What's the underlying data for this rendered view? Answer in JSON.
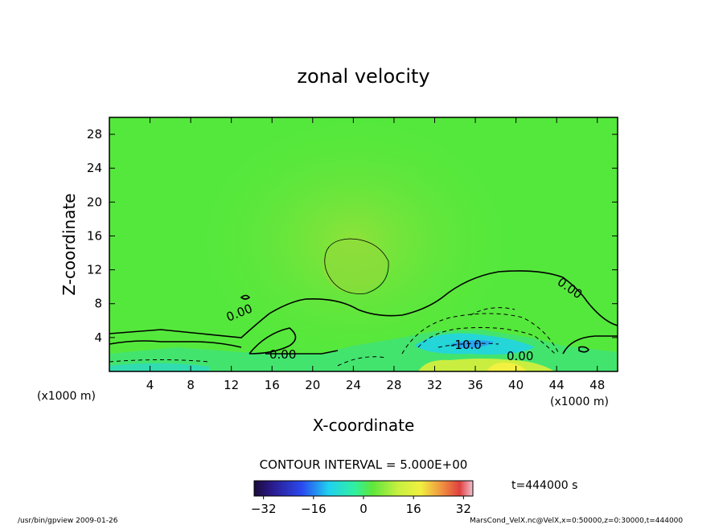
{
  "chart_data": {
    "type": "heatmap",
    "title": "zonal velocity",
    "xlabel": "X-coordinate",
    "ylabel": "Z-coordinate",
    "x_unit": "(x1000 m)",
    "y_unit": "(x1000 m)",
    "xlim": [
      0,
      50
    ],
    "ylim": [
      0,
      30
    ],
    "x_ticks": [
      "4",
      "8",
      "12",
      "16",
      "20",
      "24",
      "28",
      "32",
      "36",
      "40",
      "44",
      "48"
    ],
    "y_ticks": [
      "4",
      "8",
      "12",
      "16",
      "20",
      "24",
      "28"
    ],
    "contour_interval": "CONTOUR INTERVAL = 5.000E+00",
    "contour_labels": [
      "0.00",
      "0.00",
      "-10.0",
      "0.00",
      "0.00"
    ],
    "colorbar": {
      "range": [
        -35,
        35
      ],
      "ticks": [
        "-32",
        "-16",
        "0",
        "16",
        "32"
      ]
    },
    "time_label": "t=444000  s",
    "footer_left": "/usr/bin/gpview   2009-01-26",
    "footer_right": "MarsCond_VelX.nc@VelX,x=0:50000,z=0:30000,t=444000"
  }
}
